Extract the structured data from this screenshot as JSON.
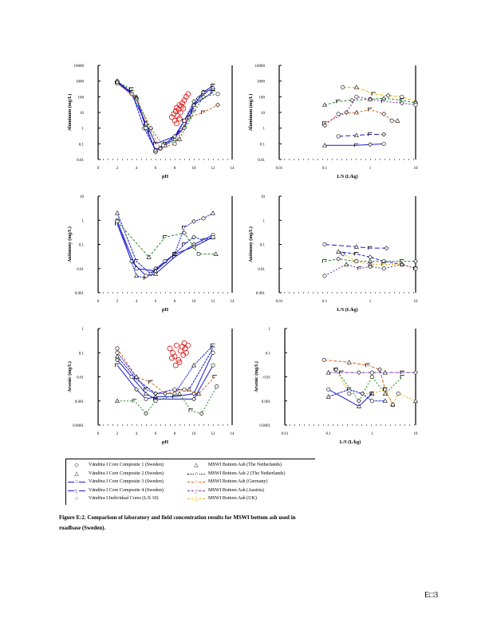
{
  "page": {
    "page_number": "E□3"
  },
  "caption": {
    "line1": "Figure   E:2.   Comparison   of laboratory   and  field  concentration   results  for  MSWI  bottom  ash  used  in",
    "line2": "roadbase   (Sweden)."
  },
  "legend": {
    "items": [
      {
        "label": "Vändöra  I Core Composite  1 (Sweden)",
        "symbol": "◇",
        "color": "#000000",
        "line": "none"
      },
      {
        "label": "Vändöra  I Core Composite  2 (Sweden)",
        "symbol": "△",
        "color": "#000000",
        "line": "none"
      },
      {
        "label": "Vändöra  I Core Composite  3 (Sweden)",
        "symbol": "○",
        "color": "#1a1acc",
        "line": "solid"
      },
      {
        "label": "Vändöra  I Core Composite  4 (Sweden)",
        "symbol": "┐",
        "color": "#1a1acc",
        "line": "solid"
      },
      {
        "label": "Vändöra  I Individual  Cores (L/S 10)",
        "symbol": "○",
        "color": "#dd1111",
        "line": "none"
      },
      {
        "label": "MSWI Bottom  Ash (The  Netherlands)",
        "symbol": "△",
        "color": "#000000",
        "line": "none"
      },
      {
        "label": "MSWI Bottom  Ash 2 (The  Netherlands)",
        "symbol": "○",
        "color": "#000000",
        "line": "dotted"
      },
      {
        "label": "MSWI Bottom  Ash (Germany)",
        "symbol": "○",
        "color": "#e06010",
        "line": "dashed"
      },
      {
        "label": "MSWI Bottom  Ash (Austria)",
        "symbol": "┌",
        "color": "#7030a0",
        "line": "dashdot"
      },
      {
        "label": "MSWI Bottom  Ash (UK)",
        "symbol": "△",
        "color": "#f0b000",
        "line": "dashed"
      }
    ]
  },
  "chart_data": [
    {
      "type": "line",
      "id": "al-ph",
      "title": "",
      "xlabel": "pH",
      "ylabel": "Aluminum     (mg/L)",
      "xscale": "linear",
      "yscale": "log",
      "xlim": [
        0,
        14
      ],
      "ylim": [
        0.01,
        10000
      ],
      "xticks": [
        "0",
        "2",
        "4",
        "6",
        "8",
        "10",
        "12",
        "14"
      ],
      "yticks": [
        "0.01",
        "0.1",
        "1",
        "10",
        "100",
        "1000",
        "10000"
      ],
      "series": [
        {
          "name": "Core Composite 1",
          "color": "#1a1acc",
          "dash": "2,1",
          "x": [
            2,
            4,
            5,
            6,
            6.5,
            8,
            9,
            10,
            11,
            12
          ],
          "y": [
            900,
            100,
            1.5,
            0.03,
            0.05,
            0.2,
            3,
            50,
            200,
            300
          ]
        },
        {
          "name": "Core Composite 2",
          "color": "#1a1acc",
          "dash": "3,1",
          "x": [
            2,
            3.5,
            4.8,
            6,
            7,
            8.5,
            9.5,
            10.5,
            12
          ],
          "y": [
            1000,
            200,
            1,
            0.04,
            0.08,
            0.5,
            5,
            80,
            400
          ]
        },
        {
          "name": "Core Composite 3",
          "color": "#1a1acc",
          "dash": "",
          "x": [
            2,
            4,
            5,
            6,
            7,
            9,
            10,
            11,
            12
          ],
          "y": [
            800,
            80,
            1,
            0.04,
            0.1,
            1,
            30,
            200,
            500
          ]
        },
        {
          "name": "Core Composite 4",
          "color": "#1a1acc",
          "dash": "",
          "x": [
            2,
            3.5,
            5,
            6,
            8,
            9,
            10,
            12
          ],
          "y": [
            1000,
            150,
            2,
            0.1,
            0.3,
            3,
            30,
            200
          ]
        },
        {
          "name": "Germany",
          "color": "#e06010",
          "dash": "3,2",
          "x": [
            2,
            4,
            5.5,
            6.5,
            8,
            9.5,
            11,
            12.5
          ],
          "y": [
            700,
            80,
            0.7,
            0.05,
            0.1,
            5,
            10,
            30
          ]
        },
        {
          "name": "Netherlands 2",
          "color": "#228822",
          "dash": "2,2",
          "x": [
            2,
            3.5,
            5.5,
            6.8,
            8.5,
            10,
            11,
            12.5
          ],
          "y": [
            900,
            300,
            1,
            0.08,
            0.2,
            10,
            100,
            150
          ]
        },
        {
          "name": "Individual Cores",
          "color": "#dd1111",
          "dash": "none",
          "markers": "circle",
          "x": [
            7.7,
            7.9,
            8.0,
            8.1,
            8.2,
            8.3,
            8.4,
            8.5,
            8.6,
            8.7,
            8.8,
            8.9,
            9.0,
            9.2,
            9.4,
            8.2,
            8.5
          ],
          "y": [
            5,
            8,
            3,
            12,
            20,
            6,
            15,
            30,
            10,
            25,
            40,
            18,
            60,
            100,
            150,
            2,
            4
          ]
        }
      ]
    },
    {
      "type": "line",
      "id": "al-ls",
      "title": "",
      "xlabel": "L/S    (L/kg)",
      "ylabel": "Aluminum     (mg/L)",
      "xscale": "log",
      "yscale": "log",
      "xlim": [
        0.01,
        10
      ],
      "ylim": [
        0.01,
        10000
      ],
      "xticks": [
        "0.01",
        "0.1",
        "1",
        "10"
      ],
      "yticks": [
        "0.01",
        "0.1",
        "1",
        "10",
        "100",
        "1000",
        "10000"
      ],
      "series": [
        {
          "name": "UK",
          "color": "#f0b000",
          "dash": "4,2",
          "x": [
            0.25,
            0.5,
            1.2,
            2.5,
            5,
            10
          ],
          "y": [
            400,
            400,
            150,
            120,
            100,
            50
          ]
        },
        {
          "name": "Netherlands",
          "color": "#228822",
          "dash": "3,2",
          "x": [
            0.1,
            0.2,
            0.4,
            1,
            2,
            5,
            10
          ],
          "y": [
            30,
            50,
            60,
            70,
            80,
            60,
            40
          ]
        },
        {
          "name": "Austria",
          "color": "#7030a0",
          "dash": "2,2",
          "x": [
            0.1,
            0.3,
            0.5,
            1,
            2,
            5,
            10
          ],
          "y": [
            2,
            10,
            100,
            70,
            50,
            40,
            30
          ]
        },
        {
          "name": "Germany",
          "color": "#e06010",
          "dash": "3,2",
          "x": [
            0.1,
            0.2,
            0.5,
            1,
            2,
            3,
            4
          ],
          "y": [
            1.5,
            8,
            10,
            15,
            8,
            3,
            3
          ]
        },
        {
          "name": "Composite 3 field",
          "color": "#1a1acc",
          "dash": "6,3",
          "x": [
            0.2,
            0.5,
            1,
            2
          ],
          "y": [
            0.3,
            0.35,
            0.4,
            0.4
          ]
        },
        {
          "name": "Composite 4 field",
          "color": "#1a1acc",
          "dash": "",
          "x": [
            0.1,
            0.5,
            1,
            2
          ],
          "y": [
            0.08,
            0.08,
            0.09,
            0.1
          ]
        }
      ]
    },
    {
      "type": "line",
      "id": "sb-ph",
      "title": "",
      "xlabel": "pH",
      "ylabel": "Antimony     (mg/L)",
      "xscale": "linear",
      "yscale": "log",
      "xlim": [
        0,
        14
      ],
      "ylim": [
        0.001,
        10
      ],
      "xticks": [
        "0",
        "2",
        "4",
        "6",
        "8",
        "10",
        "12",
        "14"
      ],
      "yticks": [
        "0.001",
        "0.01",
        "0.1",
        "1",
        "10"
      ],
      "series": [
        {
          "name": "Core Composite 1",
          "color": "#1a1acc",
          "dash": "2,1",
          "x": [
            2,
            4,
            5,
            6,
            7,
            8,
            9,
            10,
            11,
            12
          ],
          "y": [
            1,
            0.005,
            0.004,
            0.01,
            0.02,
            0.04,
            0.5,
            0.9,
            1.2,
            2
          ]
        },
        {
          "name": "Core Composite 2",
          "color": "#1a1acc",
          "dash": "3,1",
          "x": [
            2,
            4,
            5.5,
            7,
            8,
            9,
            10,
            11,
            12
          ],
          "y": [
            2,
            0.02,
            0.006,
            0.02,
            0.04,
            0.1,
            0.2,
            0.15,
            0.2
          ]
        },
        {
          "name": "Core Composite 3",
          "color": "#1a1acc",
          "dash": "",
          "x": [
            2,
            3.5,
            5,
            6,
            8,
            10,
            12
          ],
          "y": [
            0.7,
            0.02,
            0.005,
            0.006,
            0.03,
            0.1,
            0.25
          ]
        },
        {
          "name": "Core Composite 4",
          "color": "#1a1acc",
          "dash": "",
          "x": [
            2,
            4,
            6,
            8,
            10,
            12
          ],
          "y": [
            0.9,
            0.01,
            0.008,
            0.04,
            0.08,
            0.2
          ]
        },
        {
          "name": "Netherlands 2",
          "color": "#228822",
          "dash": "3,2",
          "x": [
            2,
            5.3,
            7,
            9,
            10.5,
            12.3
          ],
          "y": [
            0.9,
            0.03,
            0.2,
            0.3,
            0.04,
            0.04
          ]
        }
      ]
    },
    {
      "type": "line",
      "id": "sb-ls",
      "title": "",
      "xlabel": "L/S    (L/kg)",
      "ylabel": "Antimony     (mg/L)",
      "xscale": "log",
      "yscale": "log",
      "xlim": [
        0.01,
        10
      ],
      "ylim": [
        0.001,
        10
      ],
      "xticks": [
        "0.01",
        "0.1",
        "1",
        "10"
      ],
      "yticks": [
        "0.001",
        "0.01",
        "0.1",
        "1",
        "10"
      ],
      "series": [
        {
          "name": "Composite field A",
          "color": "#1a1acc",
          "dash": "6,3",
          "x": [
            0.1,
            0.5,
            1,
            2.3
          ],
          "y": [
            0.1,
            0.08,
            0.07,
            0.07
          ]
        },
        {
          "name": "Composite field B",
          "color": "#1a1acc",
          "dash": "4,2",
          "x": [
            0.2,
            0.5,
            1,
            2,
            5
          ],
          "y": [
            0.05,
            0.04,
            0.03,
            0.02,
            0.015
          ]
        },
        {
          "name": "Netherlands",
          "color": "#228822",
          "dash": "3,2",
          "x": [
            0.1,
            0.2,
            0.5,
            1,
            5,
            10
          ],
          "y": [
            0.02,
            0.025,
            0.02,
            0.02,
            0.02,
            0.02
          ]
        },
        {
          "name": "UK",
          "color": "#f0b000",
          "dash": "2,2",
          "x": [
            0.25,
            0.5,
            1,
            2,
            5,
            10
          ],
          "y": [
            0.04,
            0.02,
            0.015,
            0.015,
            0.015,
            0.01
          ]
        },
        {
          "name": "Austria",
          "color": "#7030a0",
          "dash": "2,2",
          "x": [
            0.1,
            0.3,
            0.6,
            1,
            2,
            5,
            10
          ],
          "y": [
            0.005,
            0.015,
            0.01,
            0.012,
            0.01,
            0.015,
            0.01
          ]
        }
      ]
    },
    {
      "type": "line",
      "id": "as-ph",
      "title": "",
      "xlabel": "pH",
      "ylabel": "Arsenic     (mg/L)",
      "xscale": "linear",
      "yscale": "log",
      "xlim": [
        0,
        14
      ],
      "ylim": [
        0.0001,
        1
      ],
      "xticks": [
        "0",
        "2",
        "4",
        "6",
        "8",
        "10",
        "12",
        "14"
      ],
      "yticks": [
        "0.0001",
        "0.001",
        "0.01",
        "0.1",
        "1"
      ],
      "series": [
        {
          "name": "Core Composite 1",
          "color": "#1a1acc",
          "dash": "2,1",
          "x": [
            2,
            4,
            5,
            6,
            8,
            10,
            12
          ],
          "y": [
            0.1,
            0.01,
            0.003,
            0.002,
            0.002,
            0.03,
            0.2
          ]
        },
        {
          "name": "Core Composite 2",
          "color": "#1a1acc",
          "dash": "3,1",
          "x": [
            2,
            4,
            6,
            8,
            9.5,
            12
          ],
          "y": [
            0.07,
            0.008,
            0.002,
            0.003,
            0.003,
            0.15
          ]
        },
        {
          "name": "Core Composite 3",
          "color": "#1a1acc",
          "dash": "",
          "x": [
            2,
            4,
            5,
            6,
            8,
            10,
            12
          ],
          "y": [
            0.03,
            0.003,
            0.0012,
            0.0015,
            0.0015,
            0.002,
            0.1
          ]
        },
        {
          "name": "Core Composite 4",
          "color": "#1a1acc",
          "dash": "",
          "x": [
            2,
            3.5,
            5,
            6,
            10,
            12
          ],
          "y": [
            0.05,
            0.01,
            0.002,
            0.0012,
            0.0012,
            0.03
          ]
        },
        {
          "name": "Germany",
          "color": "#e06010",
          "dash": "3,2",
          "x": [
            2,
            4,
            5.5,
            7,
            9,
            10.5,
            12.2
          ],
          "y": [
            0.15,
            0.01,
            0.006,
            0.002,
            0.003,
            0.002,
            0.01
          ]
        },
        {
          "name": "Netherlands 2",
          "color": "#228822",
          "dash": "2,2",
          "x": [
            2,
            3.8,
            5,
            6,
            8.5,
            9.7,
            10.8,
            12.4
          ],
          "y": [
            0.001,
            0.001,
            0.0003,
            0.001,
            0.002,
            0.0004,
            0.0003,
            0.004
          ]
        },
        {
          "name": "Individual Cores",
          "color": "#dd1111",
          "dash": "none",
          "markers": "circle",
          "x": [
            7.5,
            7.8,
            8.0,
            8.2,
            8.4,
            8.6,
            8.8,
            9.0,
            9.2,
            9.4,
            7.7,
            8.1,
            8.5,
            8.9,
            9.1
          ],
          "y": [
            0.15,
            0.1,
            0.07,
            0.2,
            0.05,
            0.12,
            0.18,
            0.25,
            0.1,
            0.2,
            0.06,
            0.03,
            0.04,
            0.08,
            0.15
          ]
        }
      ]
    },
    {
      "type": "line",
      "id": "as-ls",
      "title": "",
      "xlabel": "L/S    (L/kg)",
      "ylabel": "Arsenic     (mg/L)",
      "xscale": "log",
      "yscale": "log",
      "xlim": [
        0.01,
        10
      ],
      "ylim": [
        0.0001,
        1
      ],
      "xticks": [
        "0.01",
        "0.1",
        "1",
        "10"
      ],
      "yticks": [
        "0.0001",
        "0.001",
        "0.01",
        "0.1",
        "1"
      ],
      "series": [
        {
          "name": "Germany",
          "color": "#e06010",
          "dash": "4,2",
          "x": [
            0.08,
            0.3,
            0.8,
            1.5,
            2,
            3
          ],
          "y": [
            0.05,
            0.04,
            0.03,
            0.02,
            0.003,
            0.0007
          ]
        },
        {
          "name": "Austria",
          "color": "#7030a0",
          "dash": "4,1,1,1",
          "x": [
            0.1,
            0.2,
            0.5,
            1,
            2,
            5,
            10
          ],
          "y": [
            0.015,
            0.015,
            0.015,
            0.015,
            0.015,
            0.015,
            0.015
          ]
        },
        {
          "name": "Netherlands",
          "color": "#228822",
          "dash": "2,2",
          "x": [
            0.15,
            0.5,
            1,
            2,
            5
          ],
          "y": [
            0.02,
            0.001,
            0.01,
            0.002,
            0.01
          ]
        },
        {
          "name": "UK",
          "color": "#f0b000",
          "dash": "2,2",
          "x": [
            0.15,
            0.3,
            1,
            2,
            3,
            4,
            10
          ],
          "y": [
            0.02,
            0.002,
            0.002,
            0.003,
            0.0007,
            0.002,
            0.001
          ]
        },
        {
          "name": "Composite field A",
          "color": "#1a1acc",
          "dash": "",
          "x": [
            0.1,
            0.5,
            1
          ],
          "y": [
            0.003,
            0.0006,
            0.002
          ]
        },
        {
          "name": "Composite field B",
          "color": "#1a1acc",
          "dash": "3,1",
          "x": [
            0.1,
            0.3,
            0.6,
            1,
            2
          ],
          "y": [
            0.0015,
            0.003,
            0.002,
            0.001,
            0.001
          ]
        }
      ]
    }
  ]
}
